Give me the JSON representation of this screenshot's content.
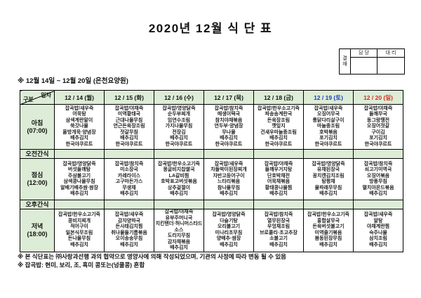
{
  "title": "2020년 12월 식 단 표",
  "approval": {
    "row_label": "결\n재",
    "columns": [
      "담 당",
      "대 리"
    ]
  },
  "period_note": "※  12월 14일  ~  12월 20일  (은천요양원)",
  "header": {
    "corner_top": "일자",
    "corner_bottom": "구분",
    "days": [
      "12 / 14 (월)",
      "12 / 15 (화)",
      "12 / 16 (수)",
      "12 / 17 (목)",
      "12 / 18 (금)",
      "12 / 19 (토)",
      "12 / 20 (일)"
    ]
  },
  "rows": [
    {
      "label": "아침\n(07:00)",
      "cells": [
        "잡곡밥/새우죽\n어묵탕\n삼색계란말이\n쑥갓나물\n올방개묵·양념장\n배추김치\n한국야쿠르트",
        "잡곡밥/야채죽\n미역황태국\n근대나물무침\n연근돈육장조림\n젓갈무침\n배추김치\n한국야쿠르트",
        "잡곡밥/영양닭죽\n순두부찌개\n임연수조림\n가지나물무침\n전장김\n배추김치\n한국야쿠르트",
        "잡곡밥/참치죽\n매생이떡국\n참치야채볶음\n연두부·양념장\n무나물\n배추김치\n한국야쿠르트",
        "잡곡밥/한우소고기죽\n파송송계란국\n돈육장조림\n깻잎지\n건새우마늘종조림\n배추김치\n한국야쿠르트",
        "잡곡밥/새우죽\n오징어무국\n통닭다리살구이\n마늘종조림\n호박볶음\n포기김치\n한국야쿠르트",
        "잡곡밥/야채죽\n들깨무국\n동그랑땡전\n오징어젓갈\n구이김\n포기김치\n한국야쿠르트"
      ]
    },
    {
      "label": "오전간식",
      "cells": [
        "",
        "",
        "",
        "",
        "",
        "",
        ""
      ]
    },
    {
      "label": "점심\n(12:00)",
      "cells": [
        "잡곡밥/영양닭죽\n버섯들깨탕\n주삼불고기\n삼색콩나물무침\n알배기배추쌈·쌈장\n배추김치",
        "잡곡밥/참치죽\n미소장국\n카레라이스\n고구마돈가스\n무생채\n배추김치",
        "잡곡밥/한우소고기죽\n몽글비지찹쌀국\nLA갈비찜\n호박표고버섯볶음\n상추겉절이\n배추김치",
        "잡곡밥/새우죽\n차돌박이된장찌개\n자반고등어구이\n느타리볶음\n참나물무침\n배추김치",
        "잡곡밥/야채죽\n들깨우거지탕\n단호박채전\n어묵채볶음\n황태콩나물찜\n배추김치",
        "잡곡밥/영양닭죽\n유채된장국\n꽁치캔김치조림\n탕평채\n물파래무무침\n배추김치",
        "잡곡밥/참치죽\n쇠고기미역국\n오징어볶음\n방풍무침\n멸치아몬드볶음\n배추김치"
      ]
    },
    {
      "label": "오후간식",
      "cells": [
        "",
        "",
        "",
        "",
        "",
        "",
        ""
      ]
    },
    {
      "label": "저녁\n(18:00)",
      "cells": [
        "잡곡밥/한우소고기죽\n콩비지찌개\n적어구이\n일본식무조림\n돈나물무침\n배추김치",
        "잡곡밥/새우죽\n감자양파국\n돈사태김치찜\n취나물들기름볶음\n오이송송무침\n배추김치",
        "잡곡밥/야채죽\n유부주머니국\n치킨텐더·허니머스타드\n소스\n도라지무침\n감자채볶음\n배추김치",
        "잡곡밥/영양닭죽\n다슬기탕\n오리불고기\n미나리초무침\n양배추·쌈장\n배추김치",
        "잡곡밥/참치죽\n열무된장국\n우엉채조림\n브로콜리·초고추장\n소불고기\n배추김치",
        "잡곡밥/한우소고기죽\n홍합살무국\n돈육버섯불고기\n미역줄기볶음\n봄동된장무침\n배추김치",
        "잡곡밥/새우죽\n알탕\n야채계란찜\n숙주나물\n삼치조림\n배추김치"
      ]
    }
  ],
  "footnotes": [
    "※ 본 식단표는 ㈜사랑과선행 과의 협약으로 영양사에 의해 작성되었으며, 기관의 사정에 따라 변동 될 수 있음",
    "※ 잡곡밥: 현미, 보리, 조, 흑미 콩또는(넝쿨콩) 혼합"
  ],
  "colors": {
    "cell_green": "#ddecd6",
    "saturday_blue": "#1d3ec2",
    "sunday_red": "#d62e1f",
    "border": "#000000",
    "background": "#ffffff"
  }
}
